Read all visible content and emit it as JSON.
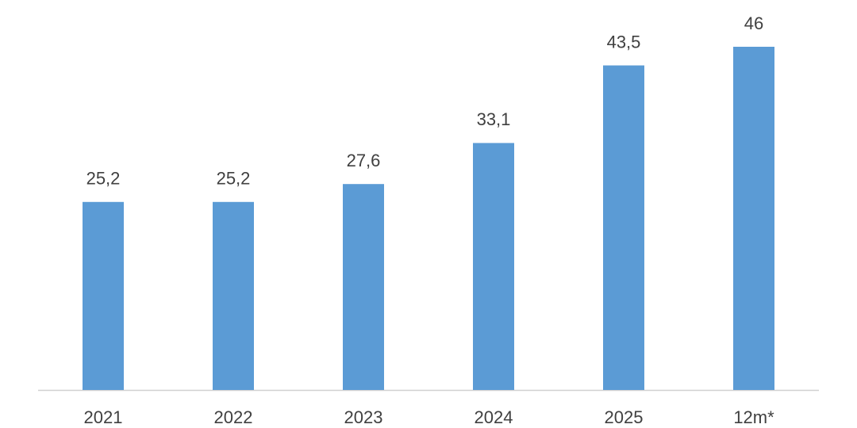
{
  "chart_data": {
    "type": "bar",
    "categories": [
      "2021",
      "2022",
      "2023",
      "2024",
      "2025",
      "12m*"
    ],
    "values": [
      25.2,
      25.2,
      27.6,
      33.1,
      43.5,
      46
    ],
    "value_labels": [
      "25,2",
      "25,2",
      "27,6",
      "33,1",
      "43,5",
      "46"
    ],
    "color": "#5b9bd5"
  }
}
